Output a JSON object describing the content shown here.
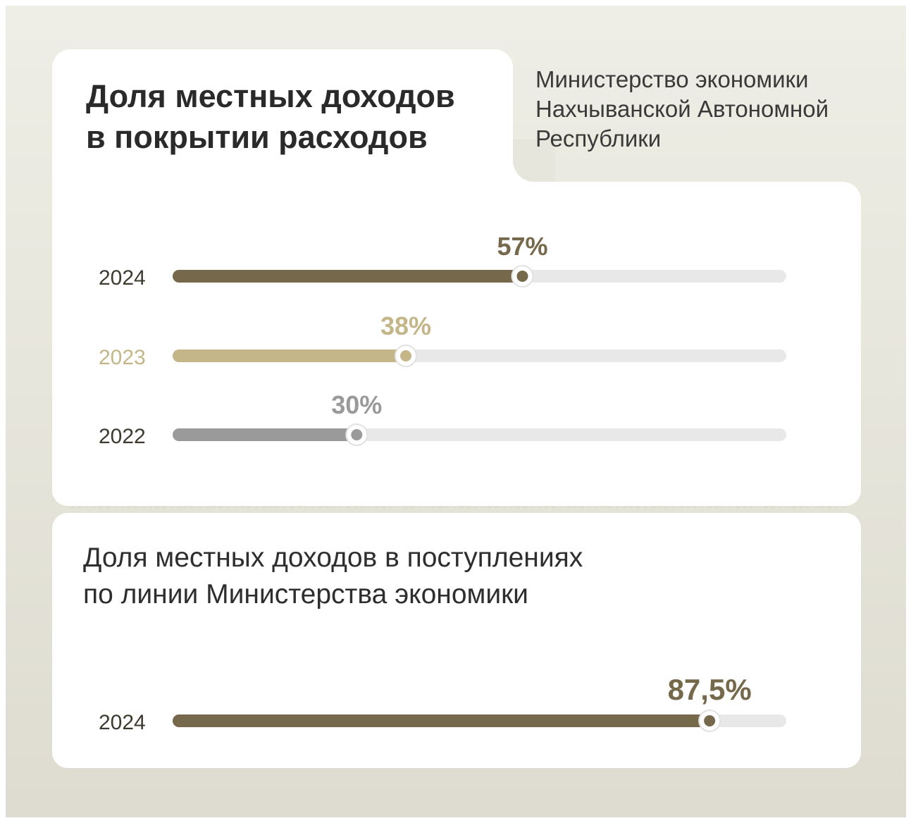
{
  "header": {
    "title_line1": "Доля местных доходов",
    "title_line2": "в покрытии расходов",
    "source_line1": "Министерство экономики",
    "source_line2": "Нахчыванской Автономной",
    "source_line3": "Республики"
  },
  "section2": {
    "title_line1": "Доля местных доходов в поступлениях",
    "title_line2": "по линии Министерства экономики"
  },
  "colors": {
    "track": "#e8e8e8",
    "dark": "#76684a",
    "gold": "#c4b688",
    "grey": "#9a9a9a",
    "label_dark": "#3e3a30"
  },
  "chart_data": [
    {
      "type": "bar",
      "orientation": "horizontal",
      "title": "Доля местных доходов в покрытии расходов",
      "categories": [
        "2024",
        "2023",
        "2022"
      ],
      "values": [
        57,
        38,
        30
      ],
      "value_labels": [
        "57%",
        "38%",
        "30%"
      ],
      "colors": [
        "#76684a",
        "#c4b688",
        "#9a9a9a"
      ],
      "xlim": [
        0,
        100
      ],
      "unit": "%"
    },
    {
      "type": "bar",
      "orientation": "horizontal",
      "title": "Доля местных доходов в поступлениях по линии Министерства экономики",
      "categories": [
        "2024"
      ],
      "values": [
        87.5
      ],
      "value_labels": [
        "87,5%"
      ],
      "colors": [
        "#76684a"
      ],
      "xlim": [
        0,
        100
      ],
      "unit": "%"
    }
  ]
}
